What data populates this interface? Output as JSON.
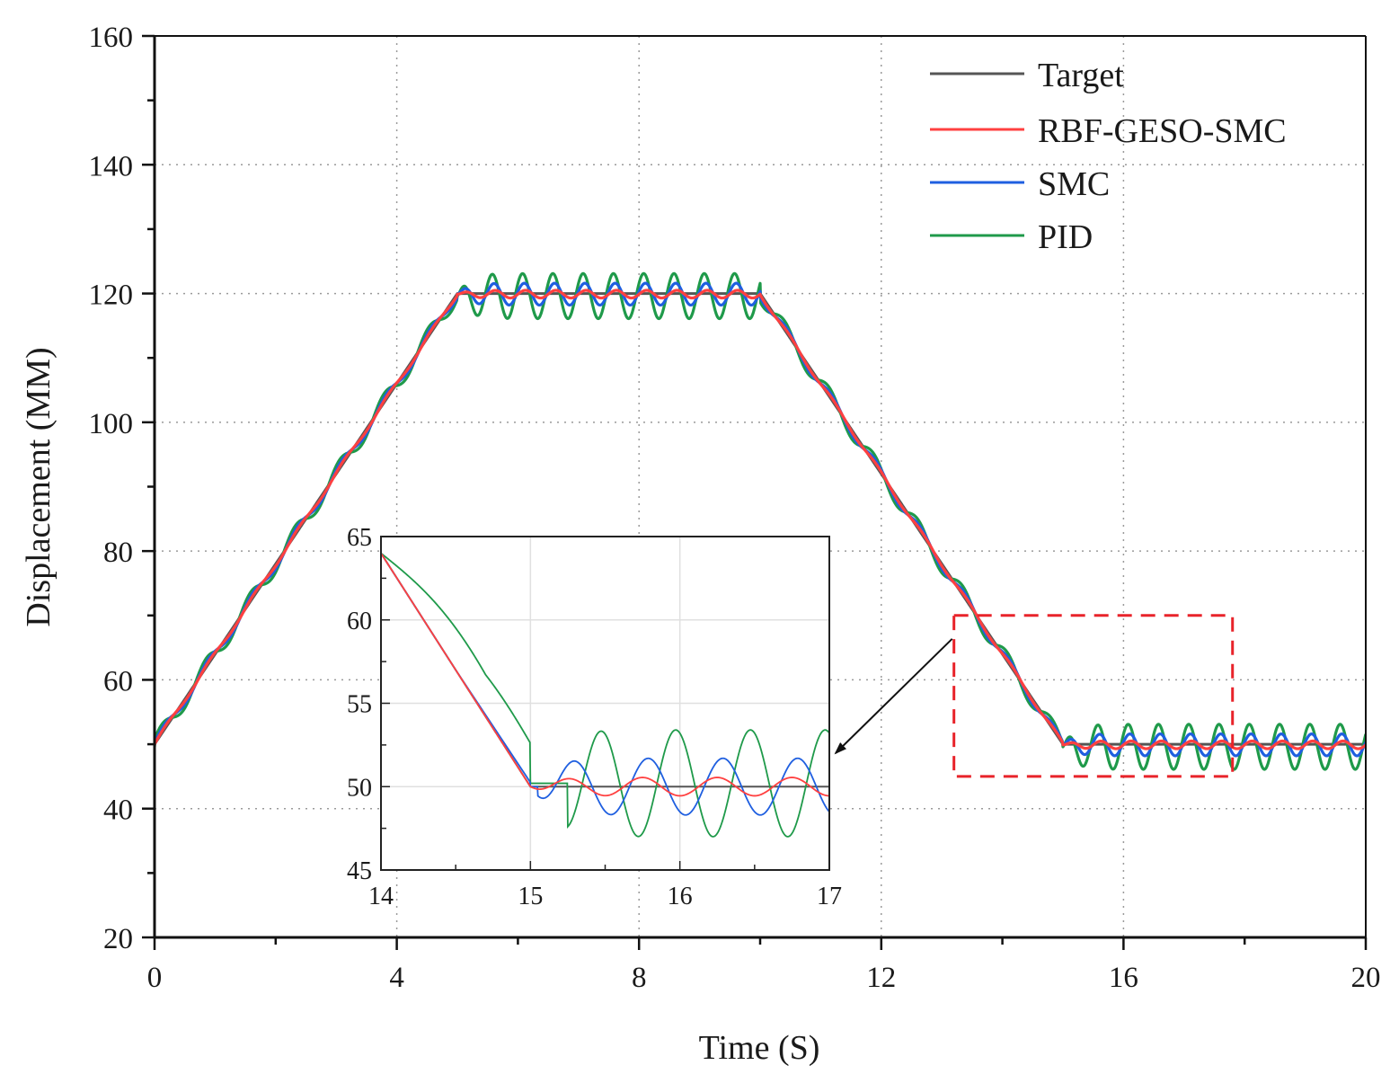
{
  "chart_data": {
    "type": "line",
    "title": "",
    "xlabel": "Time (S)",
    "ylabel": "Displacement (MM)",
    "xlim": [
      0,
      20
    ],
    "ylim": [
      20,
      160
    ],
    "xticks": [
      0,
      4,
      8,
      12,
      16,
      20
    ],
    "yticks": [
      20,
      40,
      60,
      80,
      100,
      120,
      140,
      160
    ],
    "grid": true,
    "legend_position": "top-right",
    "legend": [
      "Target",
      "RBF-GESO-SMC",
      "SMC",
      "PID"
    ],
    "colors": {
      "Target": "#555555",
      "RBF-GESO-SMC": "#ff4040",
      "SMC": "#1f5fe0",
      "PID": "#1f9a4a",
      "highlight_box": "#e8232a",
      "annotation_arrow": "#111111"
    },
    "series": [
      {
        "name": "Target",
        "description": "trapezoid reference",
        "x": [
          0,
          5,
          10,
          15,
          20
        ],
        "y": [
          50,
          120,
          120,
          50,
          50
        ]
      },
      {
        "name": "RBF-GESO-SMC",
        "oscillation_amplitude_mm": 0.6,
        "oscillation_period_s": 0.5
      },
      {
        "name": "SMC",
        "oscillation_amplitude_mm": 1.7,
        "oscillation_period_s": 0.5
      },
      {
        "name": "PID",
        "oscillation_amplitude_mm": 3.5,
        "oscillation_period_s": 0.5
      }
    ],
    "highlight_box": {
      "x_range": [
        13.2,
        17.8
      ],
      "y_range": [
        45,
        70
      ]
    },
    "inset": {
      "xlim": [
        14,
        17
      ],
      "ylim": [
        45,
        65
      ],
      "xticks": [
        14,
        15,
        16,
        17
      ],
      "yticks": [
        45,
        50,
        55,
        60,
        65
      ]
    }
  }
}
